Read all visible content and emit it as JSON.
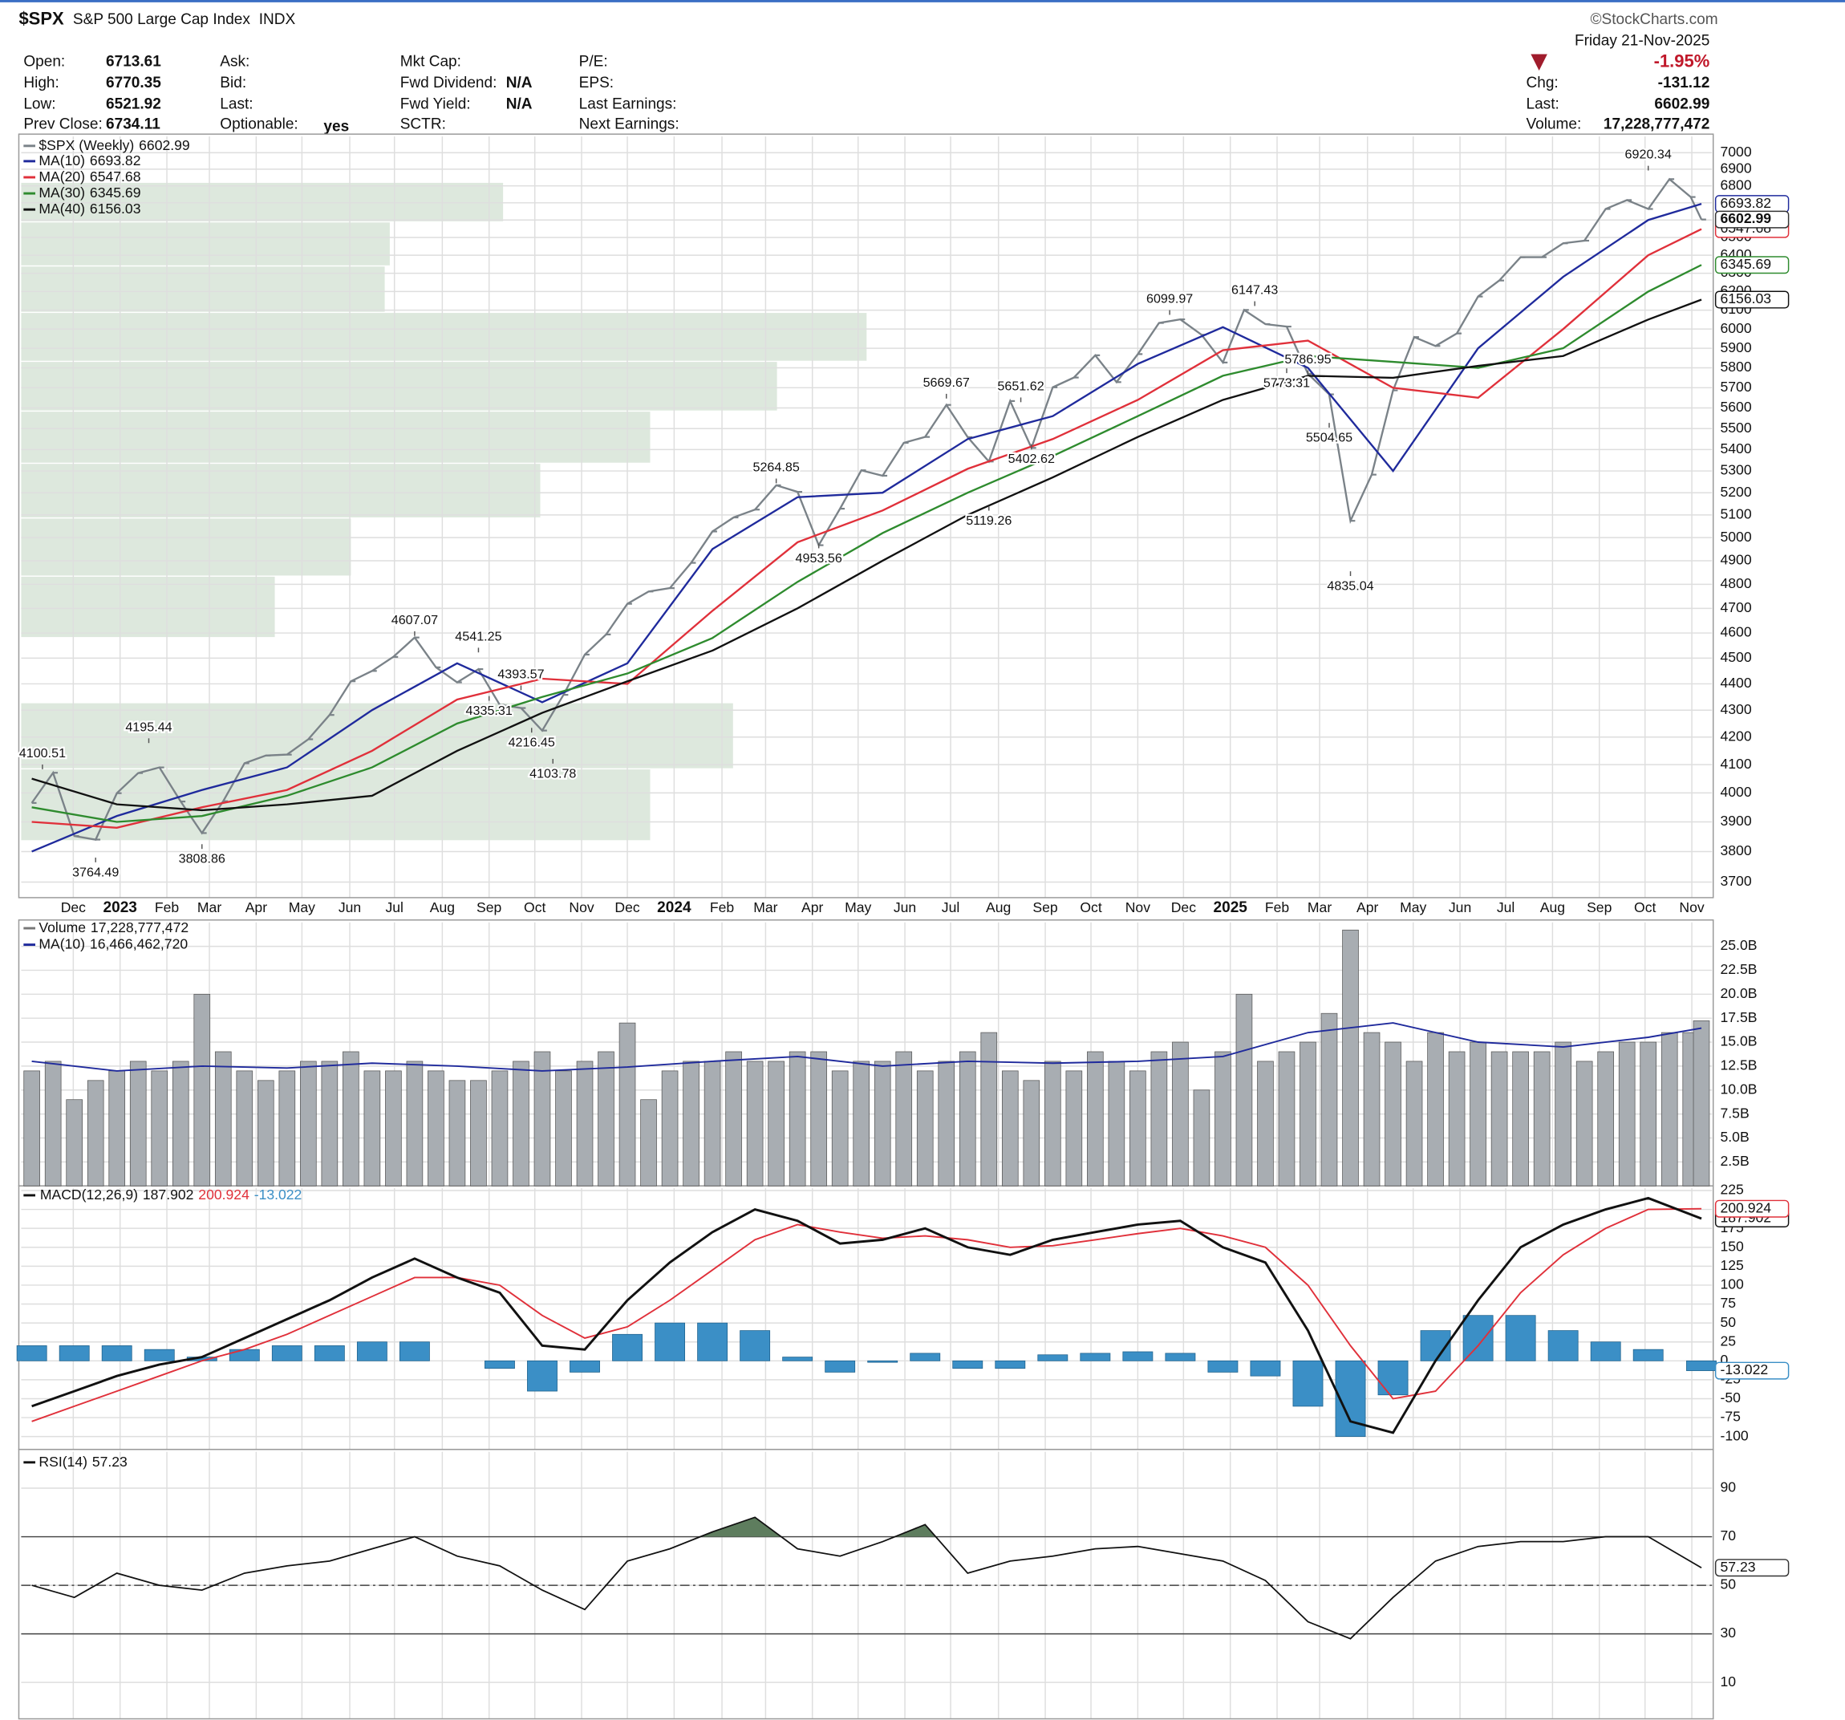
{
  "header": {
    "symbol": "$SPX",
    "name": "S&P 500 Large Cap Index",
    "exchange": "INDX",
    "copyright": "©StockCharts.com",
    "fields": [
      [
        {
          "label": "Open:",
          "value": "6713.61"
        },
        {
          "label": "High:",
          "value": "6770.35"
        },
        {
          "label": "Low:",
          "value": "6521.92"
        },
        {
          "label": "Prev Close:",
          "value": "6734.11"
        }
      ],
      [
        {
          "label": "Ask:"
        },
        {
          "label": "Bid:"
        },
        {
          "label": "Last:"
        },
        {
          "label": "Optionable:",
          "value": "yes"
        }
      ],
      [
        {
          "label": "Mkt Cap:"
        },
        {
          "label": "Fwd Dividend:",
          "value": "N/A"
        },
        {
          "label": "Fwd Yield:",
          "value": "N/A"
        },
        {
          "label": "SCTR:"
        }
      ],
      [
        {
          "label": "P/E:"
        },
        {
          "label": "EPS:"
        },
        {
          "label": "Last Earnings:"
        },
        {
          "label": "Next Earnings:"
        }
      ]
    ],
    "summary": {
      "date": "Friday  21-Nov-2025",
      "change_pct": "-1.95%",
      "fields": [
        {
          "label": "Chg:",
          "value": "-131.12"
        },
        {
          "label": "Last:",
          "value": "6602.99"
        },
        {
          "label": "Volume:",
          "value": "17,228,777,472"
        }
      ]
    }
  },
  "chart_data": {
    "type": "stock",
    "xlim": [
      -1,
      158
    ],
    "xticks": [
      {
        "value": 3.9,
        "label": "Dec"
      },
      {
        "value": 8.3,
        "label": "2023"
      },
      {
        "value": 12.7,
        "label": "Feb"
      },
      {
        "value": 16.7,
        "label": "Mar"
      },
      {
        "value": 21.1,
        "label": "Apr"
      },
      {
        "value": 25.4,
        "label": "May"
      },
      {
        "value": 29.9,
        "label": "Jun"
      },
      {
        "value": 34.1,
        "label": "Jul"
      },
      {
        "value": 38.6,
        "label": "Aug"
      },
      {
        "value": 43.0,
        "label": "Sep"
      },
      {
        "value": 47.3,
        "label": "Oct"
      },
      {
        "value": 51.7,
        "label": "Nov"
      },
      {
        "value": 56.0,
        "label": "Dec"
      },
      {
        "value": 60.4,
        "label": "2024"
      },
      {
        "value": 64.9,
        "label": "Feb"
      },
      {
        "value": 69.0,
        "label": "Mar"
      },
      {
        "value": 73.4,
        "label": "Apr"
      },
      {
        "value": 77.7,
        "label": "May"
      },
      {
        "value": 82.1,
        "label": "Jun"
      },
      {
        "value": 86.4,
        "label": "Jul"
      },
      {
        "value": 90.9,
        "label": "Aug"
      },
      {
        "value": 95.3,
        "label": "Sep"
      },
      {
        "value": 99.6,
        "label": "Oct"
      },
      {
        "value": 104.0,
        "label": "Nov"
      },
      {
        "value": 108.3,
        "label": "Dec"
      },
      {
        "value": 112.7,
        "label": "2025"
      },
      {
        "value": 117.1,
        "label": "Feb"
      },
      {
        "value": 121.1,
        "label": "Mar"
      },
      {
        "value": 125.6,
        "label": "Apr"
      },
      {
        "value": 129.9,
        "label": "May"
      },
      {
        "value": 134.3,
        "label": "Jun"
      },
      {
        "value": 138.6,
        "label": "Jul"
      },
      {
        "value": 143.0,
        "label": "Aug"
      },
      {
        "value": 147.4,
        "label": "Sep"
      },
      {
        "value": 151.7,
        "label": "Oct"
      },
      {
        "value": 156.1,
        "label": "Nov"
      }
    ],
    "grid": true,
    "price": {
      "name": "$SPX (Weekly)",
      "last": 6602.99,
      "color": "#7a8288",
      "log": true,
      "ylim": [
        3650,
        7100
      ],
      "yticks": [
        3700,
        3800,
        3900,
        4000,
        4100,
        4200,
        4300,
        4400,
        4500,
        4600,
        4700,
        4800,
        4900,
        5000,
        5100,
        5200,
        5300,
        5400,
        5500,
        5600,
        5700,
        5800,
        5900,
        6000,
        6100,
        6200,
        6300,
        6400,
        6500,
        6600,
        6700,
        6800,
        6900,
        7000
      ],
      "x": [
        0,
        2,
        4,
        6,
        8,
        10,
        12,
        14,
        16,
        18,
        20,
        22,
        24,
        26,
        28,
        30,
        32,
        34,
        36,
        38,
        40,
        42,
        44,
        46,
        48,
        50,
        52,
        54,
        56,
        58,
        60,
        62,
        64,
        66,
        68,
        70,
        72,
        74,
        76,
        78,
        80,
        82,
        84,
        86,
        88,
        90,
        92,
        94,
        96,
        98,
        100,
        102,
        104,
        106,
        108,
        110,
        112,
        114,
        116,
        118,
        120,
        122,
        124,
        126,
        128,
        130,
        132,
        134,
        136,
        138,
        140,
        142,
        144,
        146,
        148,
        150,
        152,
        154,
        156,
        157
      ],
      "values": [
        3965,
        4071,
        3852,
        3840,
        3999,
        4070,
        4090,
        3970,
        3862,
        3971,
        4105,
        4133,
        4136,
        4192,
        4282,
        4410,
        4450,
        4505,
        4582,
        4464,
        4406,
        4457,
        4320,
        4308,
        4224,
        4358,
        4514,
        4594,
        4719,
        4770,
        4784,
        4891,
        5027,
        5089,
        5124,
        5234,
        5204,
        4967,
        5128,
        5303,
        5278,
        5432,
        5460,
        5615,
        5459,
        5344,
        5634,
        5408,
        5702,
        5751,
        5864,
        5728,
        5870,
        6032,
        6051,
        5970,
        5827,
        6101,
        6026,
        6013,
        5770,
        5667,
        5074,
        5283,
        5687,
        5958,
        5912,
        5977,
        6173,
        6260,
        6389,
        6389,
        6467,
        6482,
        6664,
        6716,
        6664,
        6840,
        6734,
        6602.99
      ],
      "annotations": [
        {
          "x": 1,
          "value": 4100.51
        },
        {
          "x": 6,
          "value": 3764.49
        },
        {
          "x": 11,
          "value": 4195.44
        },
        {
          "x": 16,
          "value": 3808.86
        },
        {
          "x": 36,
          "value": 4607.07
        },
        {
          "x": 42,
          "value": 4541.25
        },
        {
          "x": 43,
          "value": 4335.31
        },
        {
          "x": 46,
          "value": 4393.57
        },
        {
          "x": 47,
          "value": 4216.45
        },
        {
          "x": 49,
          "value": 4103.78
        },
        {
          "x": 70,
          "value": 5264.85
        },
        {
          "x": 74,
          "value": 4953.56
        },
        {
          "x": 86,
          "value": 5669.67
        },
        {
          "x": 90,
          "value": 5119.26
        },
        {
          "x": 93,
          "value": 5651.62
        },
        {
          "x": 94,
          "value": 5402.62
        },
        {
          "x": 107,
          "value": 6099.97
        },
        {
          "x": 115,
          "value": 6147.43
        },
        {
          "x": 118,
          "value": 5773.31
        },
        {
          "x": 120,
          "value": 5786.95
        },
        {
          "x": 122,
          "value": 5504.65
        },
        {
          "x": 124,
          "value": 4835.04
        },
        {
          "x": 152,
          "value": 6920.34
        }
      ],
      "volume_by_price": {
        "color": "#dde8dd",
        "ranges": [
          {
            "low": 6586,
            "high": 6818,
            "volume": 28.5
          },
          {
            "low": 6337,
            "high": 6586,
            "volume": 21.8
          },
          {
            "low": 6085,
            "high": 6337,
            "volume": 21.5
          },
          {
            "low": 5830,
            "high": 6085,
            "volume": 50
          },
          {
            "low": 5582,
            "high": 5830,
            "volume": 44.7
          },
          {
            "low": 5333,
            "high": 5582,
            "volume": 37.2
          },
          {
            "low": 5084,
            "high": 5333,
            "volume": 30.7
          },
          {
            "low": 4832,
            "high": 5084,
            "volume": 19.5
          },
          {
            "low": 4579,
            "high": 4832,
            "volume": 15
          },
          {
            "low": 4083,
            "high": 4326,
            "volume": 42.1
          },
          {
            "low": 3834,
            "high": 4083,
            "volume": 37.2
          }
        ]
      }
    },
    "moving_averages": {
      "x": [
        0,
        8,
        16,
        24,
        32,
        40,
        48,
        56,
        64,
        72,
        80,
        88,
        96,
        104,
        112,
        120,
        128,
        136,
        144,
        152,
        157
      ],
      "series": [
        {
          "name": "MA(10)",
          "last": 6693.82,
          "color": "#1f2a9c",
          "values": [
            3800,
            3920,
            4010,
            4090,
            4300,
            4480,
            4330,
            4480,
            4950,
            5180,
            5200,
            5450,
            5560,
            5820,
            6010,
            5800,
            5300,
            5900,
            6280,
            6600,
            6693.82
          ]
        },
        {
          "name": "MA(20)",
          "last": 6547.68,
          "color": "#e0303a",
          "values": [
            3900,
            3880,
            3950,
            4010,
            4150,
            4340,
            4420,
            4400,
            4690,
            4980,
            5120,
            5310,
            5450,
            5640,
            5890,
            5940,
            5700,
            5650,
            6000,
            6400,
            6547.68
          ]
        },
        {
          "name": "MA(30)",
          "last": 6345.69,
          "color": "#2e8b2e",
          "values": [
            3950,
            3900,
            3920,
            3990,
            4090,
            4250,
            4350,
            4440,
            4580,
            4810,
            5020,
            5200,
            5370,
            5560,
            5760,
            5860,
            5830,
            5800,
            5900,
            6200,
            6345.69
          ]
        },
        {
          "name": "MA(40)",
          "last": 6156.03,
          "color": "#111111",
          "values": [
            4050,
            3960,
            3940,
            3960,
            3990,
            4150,
            4290,
            4410,
            4530,
            4700,
            4900,
            5100,
            5270,
            5460,
            5640,
            5760,
            5750,
            5810,
            5860,
            6050,
            6156.03
          ]
        }
      ]
    },
    "volume": {
      "name": "Volume",
      "last": "17,228,777,472",
      "color": "#a8adb2",
      "ylim": [
        0,
        27.5
      ],
      "yticks": [
        {
          "value": 2.5,
          "label": "2.5B"
        },
        {
          "value": 5,
          "label": "5.0B"
        },
        {
          "value": 7.5,
          "label": "7.5B"
        },
        {
          "value": 10,
          "label": "10.0B"
        },
        {
          "value": 12.5,
          "label": "12.5B"
        },
        {
          "value": 15,
          "label": "15.0B"
        },
        {
          "value": 17.5,
          "label": "17.5B"
        },
        {
          "value": 20,
          "label": "20.0B"
        },
        {
          "value": 22.5,
          "label": "22.5B"
        },
        {
          "value": 25,
          "label": "25.0B"
        }
      ],
      "values": [
        12,
        13,
        9,
        11,
        12,
        13,
        12,
        13,
        20,
        14,
        12,
        11,
        12,
        13,
        13,
        14,
        12,
        12,
        13,
        12,
        11,
        11,
        12,
        13,
        14,
        12,
        13,
        14,
        17,
        9,
        12,
        13,
        13,
        14,
        13,
        13,
        14,
        14,
        12,
        13,
        13,
        14,
        12,
        13,
        14,
        16,
        12,
        11,
        13,
        12,
        14,
        13,
        12,
        14,
        15,
        10,
        14,
        20,
        13,
        14,
        15,
        18,
        26.7,
        16,
        15,
        13,
        16,
        14,
        15,
        14,
        14,
        14,
        15,
        13,
        14,
        15,
        15,
        16,
        16,
        17.228777472
      ],
      "ma": {
        "name": "MA(10)",
        "last": "16,466,462,720",
        "color": "#1f2a9c",
        "x": [
          0,
          8,
          16,
          24,
          32,
          40,
          48,
          56,
          64,
          72,
          80,
          88,
          96,
          104,
          112,
          120,
          128,
          136,
          144,
          152,
          157
        ],
        "values": [
          13,
          12,
          12.5,
          12.3,
          12.8,
          12.5,
          12,
          12.4,
          13,
          13.5,
          12.5,
          13,
          12.8,
          13,
          13.5,
          16,
          17,
          15,
          14.5,
          15.5,
          16.46646272
        ]
      }
    },
    "macd": {
      "name": "MACD(12,26,9)",
      "ylim": [
        -117,
        228
      ],
      "yticks": [
        -100,
        -75,
        -50,
        -25,
        0,
        25,
        50,
        75,
        100,
        125,
        150,
        175,
        200,
        225
      ],
      "x": [
        0,
        4,
        8,
        12,
        16,
        20,
        24,
        28,
        32,
        36,
        40,
        44,
        48,
        52,
        56,
        60,
        64,
        68,
        72,
        76,
        80,
        84,
        88,
        92,
        96,
        100,
        104,
        108,
        112,
        116,
        120,
        124,
        128,
        132,
        136,
        140,
        144,
        148,
        152,
        157
      ],
      "series": [
        {
          "name": "MACD",
          "last": 187.902,
          "color": "#111111",
          "values": [
            -60,
            -40,
            -20,
            -5,
            5,
            30,
            55,
            80,
            110,
            135,
            110,
            90,
            20,
            15,
            80,
            130,
            170,
            200,
            185,
            155,
            160,
            175,
            150,
            140,
            160,
            170,
            180,
            185,
            150,
            130,
            40,
            -80,
            -95,
            0,
            80,
            150,
            180,
            200,
            215,
            187.902
          ]
        },
        {
          "name": "Signal",
          "last": 200.924,
          "color": "#e0303a",
          "values": [
            -80,
            -60,
            -40,
            -20,
            0,
            15,
            35,
            60,
            85,
            110,
            110,
            100,
            60,
            30,
            45,
            80,
            120,
            160,
            180,
            170,
            162,
            165,
            160,
            150,
            152,
            160,
            168,
            175,
            165,
            150,
            100,
            20,
            -50,
            -40,
            20,
            90,
            140,
            175,
            200,
            200.924
          ]
        },
        {
          "name": "Histogram",
          "last": -13.022,
          "color": "#3b8fc6",
          "values": [
            20,
            20,
            20,
            15,
            5,
            15,
            20,
            20,
            25,
            25,
            0,
            -10,
            -40,
            -15,
            35,
            50,
            50,
            40,
            5,
            -15,
            -2,
            10,
            -10,
            -10,
            8,
            10,
            12,
            10,
            -15,
            -20,
            -60,
            -100,
            -45,
            40,
            60,
            60,
            40,
            25,
            15,
            -13.022
          ]
        }
      ]
    },
    "rsi": {
      "name": "RSI(14)",
      "last": 57.23,
      "color": "#111111",
      "fill": "#5e7d5e",
      "ylim": [
        -5,
        105
      ],
      "yticks": [
        10,
        30,
        50,
        70,
        90
      ],
      "levels": [
        30,
        70
      ],
      "midline": 50,
      "x": [
        0,
        4,
        8,
        12,
        16,
        20,
        24,
        28,
        32,
        36,
        40,
        44,
        48,
        52,
        56,
        60,
        64,
        68,
        72,
        76,
        80,
        84,
        88,
        92,
        96,
        100,
        104,
        108,
        112,
        116,
        120,
        124,
        128,
        132,
        136,
        140,
        144,
        148,
        152,
        157
      ],
      "values": [
        50,
        45,
        55,
        50,
        48,
        55,
        58,
        60,
        65,
        70,
        62,
        58,
        48,
        40,
        60,
        65,
        72,
        78,
        65,
        62,
        68,
        75,
        55,
        60,
        62,
        65,
        66,
        63,
        60,
        52,
        35,
        28,
        45,
        60,
        66,
        68,
        68,
        70,
        70,
        57.23
      ]
    }
  }
}
